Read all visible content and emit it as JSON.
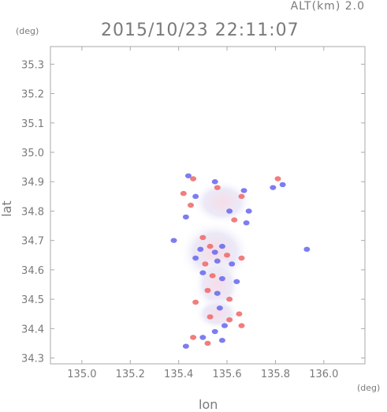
{
  "header": {
    "alt_label": "ALT(km) 2.0",
    "datetime": "2015/10/23 22:11:07"
  },
  "chart_data": {
    "type": "heatmap",
    "title": "2015/10/23 22:11:07",
    "subtitle": "ALT(km) 2.0",
    "xlabel": "lon",
    "ylabel": "lat",
    "x_unit": "(deg)",
    "y_unit": "(deg)",
    "xlim": [
      134.87,
      136.17
    ],
    "ylim": [
      34.28,
      35.36
    ],
    "x_ticks": [
      "135.0",
      "135.2",
      "135.4",
      "135.6",
      "135.8",
      "136.0"
    ],
    "y_ticks": [
      "34.3",
      "34.4",
      "34.5",
      "34.6",
      "34.7",
      "34.8",
      "34.9",
      "35.0",
      "35.1",
      "35.2",
      "35.3"
    ],
    "grid": false,
    "colors": {
      "positive": "#ee6666",
      "negative": "#6666ee",
      "frame": "#aaaaaa"
    },
    "points": [
      {
        "x": 135.44,
        "y": 34.92,
        "v": -1
      },
      {
        "x": 135.46,
        "y": 34.91,
        "v": 1
      },
      {
        "x": 135.55,
        "y": 34.9,
        "v": -1
      },
      {
        "x": 135.56,
        "y": 34.88,
        "v": 1
      },
      {
        "x": 135.81,
        "y": 34.91,
        "v": 1
      },
      {
        "x": 135.83,
        "y": 34.89,
        "v": -1
      },
      {
        "x": 135.79,
        "y": 34.88,
        "v": -1
      },
      {
        "x": 135.67,
        "y": 34.87,
        "v": -1
      },
      {
        "x": 135.66,
        "y": 34.85,
        "v": 1
      },
      {
        "x": 135.42,
        "y": 34.86,
        "v": 1
      },
      {
        "x": 135.47,
        "y": 34.85,
        "v": -1
      },
      {
        "x": 135.45,
        "y": 34.82,
        "v": 1
      },
      {
        "x": 135.43,
        "y": 34.78,
        "v": -1
      },
      {
        "x": 135.61,
        "y": 34.8,
        "v": -1
      },
      {
        "x": 135.63,
        "y": 34.77,
        "v": 1
      },
      {
        "x": 135.69,
        "y": 34.8,
        "v": -1
      },
      {
        "x": 135.68,
        "y": 34.76,
        "v": -1
      },
      {
        "x": 135.93,
        "y": 34.67,
        "v": -1
      },
      {
        "x": 135.38,
        "y": 34.7,
        "v": -1
      },
      {
        "x": 135.5,
        "y": 34.71,
        "v": 1
      },
      {
        "x": 135.49,
        "y": 34.67,
        "v": -1
      },
      {
        "x": 135.53,
        "y": 34.68,
        "v": 1
      },
      {
        "x": 135.55,
        "y": 34.66,
        "v": -1
      },
      {
        "x": 135.58,
        "y": 34.68,
        "v": -1
      },
      {
        "x": 135.6,
        "y": 34.65,
        "v": 1
      },
      {
        "x": 135.47,
        "y": 34.64,
        "v": -1
      },
      {
        "x": 135.51,
        "y": 34.62,
        "v": 1
      },
      {
        "x": 135.56,
        "y": 34.63,
        "v": -1
      },
      {
        "x": 135.62,
        "y": 34.62,
        "v": -1
      },
      {
        "x": 135.66,
        "y": 34.64,
        "v": 1
      },
      {
        "x": 135.5,
        "y": 34.59,
        "v": -1
      },
      {
        "x": 135.54,
        "y": 34.58,
        "v": 1
      },
      {
        "x": 135.58,
        "y": 34.57,
        "v": -1
      },
      {
        "x": 135.64,
        "y": 34.56,
        "v": -1
      },
      {
        "x": 135.52,
        "y": 34.53,
        "v": 1
      },
      {
        "x": 135.56,
        "y": 34.52,
        "v": -1
      },
      {
        "x": 135.61,
        "y": 34.5,
        "v": 1
      },
      {
        "x": 135.47,
        "y": 34.49,
        "v": 1
      },
      {
        "x": 135.57,
        "y": 34.47,
        "v": -1
      },
      {
        "x": 135.53,
        "y": 34.44,
        "v": 1
      },
      {
        "x": 135.61,
        "y": 34.43,
        "v": 1
      },
      {
        "x": 135.65,
        "y": 34.45,
        "v": 1
      },
      {
        "x": 135.59,
        "y": 34.41,
        "v": -1
      },
      {
        "x": 135.66,
        "y": 34.41,
        "v": 1
      },
      {
        "x": 135.55,
        "y": 34.39,
        "v": -1
      },
      {
        "x": 135.5,
        "y": 34.37,
        "v": -1
      },
      {
        "x": 135.46,
        "y": 34.37,
        "v": 1
      },
      {
        "x": 135.43,
        "y": 34.34,
        "v": -1
      },
      {
        "x": 135.52,
        "y": 34.35,
        "v": 1
      },
      {
        "x": 135.58,
        "y": 34.36,
        "v": -1
      }
    ]
  }
}
